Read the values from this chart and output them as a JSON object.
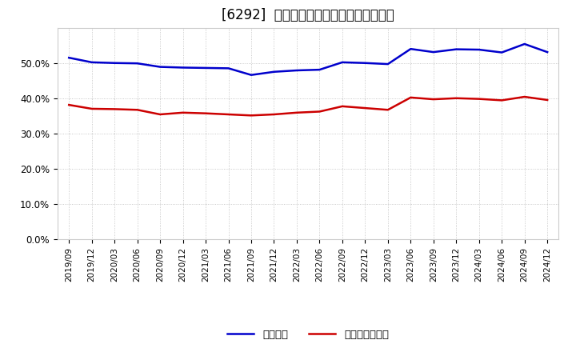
{
  "title": "[6292]  固定比率、固定長期適合率の推移",
  "x_labels": [
    "2019/09",
    "2019/12",
    "2020/03",
    "2020/06",
    "2020/09",
    "2020/12",
    "2021/03",
    "2021/06",
    "2021/09",
    "2021/12",
    "2022/03",
    "2022/06",
    "2022/09",
    "2022/12",
    "2023/03",
    "2023/06",
    "2023/09",
    "2023/12",
    "2024/03",
    "2024/06",
    "2024/09",
    "2024/12"
  ],
  "fixed_ratio": [
    0.516,
    0.503,
    0.501,
    0.5,
    0.49,
    0.488,
    0.487,
    0.486,
    0.467,
    0.476,
    0.48,
    0.482,
    0.503,
    0.501,
    0.498,
    0.541,
    0.532,
    0.54,
    0.539,
    0.531,
    0.555,
    0.532
  ],
  "fixed_longterm_ratio": [
    0.382,
    0.371,
    0.37,
    0.368,
    0.355,
    0.36,
    0.358,
    0.355,
    0.352,
    0.355,
    0.36,
    0.363,
    0.378,
    0.373,
    0.368,
    0.403,
    0.398,
    0.401,
    0.399,
    0.395,
    0.405,
    0.396
  ],
  "line1_color": "#0000cc",
  "line2_color": "#cc0000",
  "background_color": "#ffffff",
  "plot_bg_color": "#ffffff",
  "grid_color": "#aaaaaa",
  "ylim": [
    0.0,
    0.6
  ],
  "yticks": [
    0.0,
    0.1,
    0.2,
    0.3,
    0.4,
    0.5
  ],
  "legend_label1": "固定比率",
  "legend_label2": "固定長期適合率",
  "title_fontsize": 12
}
